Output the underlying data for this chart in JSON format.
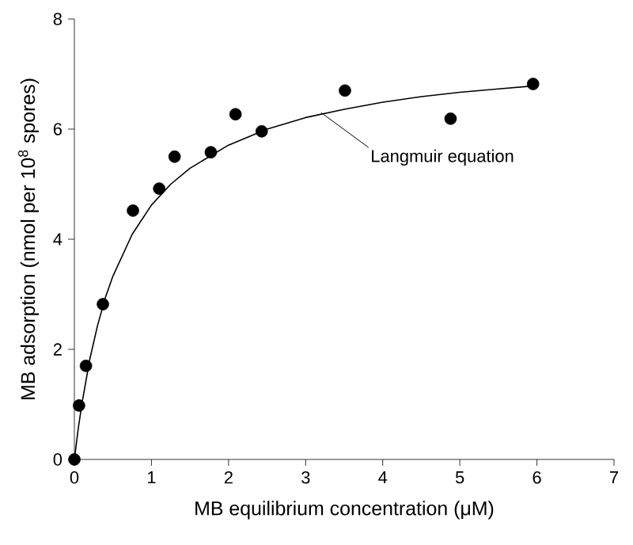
{
  "chart_data": {
    "type": "scatter",
    "xlabel": "MB equilibrium concentration (μM)",
    "ylabel": "MB adsorption (nmol per 10$^{8}$ spores)",
    "xlim": [
      0,
      7
    ],
    "ylim": [
      0,
      8
    ],
    "xticks": [
      0,
      1,
      2,
      3,
      4,
      5,
      6,
      7
    ],
    "yticks": [
      0,
      2,
      4,
      6,
      8
    ],
    "grid": false,
    "series": [
      {
        "marker": "circle",
        "color": "#000000",
        "x": [
          0,
          0.06,
          0.15,
          0.37,
          0.76,
          1.1,
          1.3,
          1.77,
          2.09,
          2.43,
          3.51,
          4.88,
          5.95
        ],
        "values": [
          0,
          0.98,
          1.7,
          2.82,
          4.52,
          4.92,
          5.5,
          5.58,
          6.27,
          5.96,
          6.7,
          6.19,
          6.82
        ]
      },
      {
        "type": "line",
        "marker": "none",
        "line_style": "solid",
        "color": "#000000",
        "x": [
          0,
          0.05,
          0.1,
          0.2,
          0.3,
          0.4,
          0.5,
          0.75,
          1,
          1.25,
          1.5,
          2,
          2.5,
          3,
          3.5,
          4,
          4.5,
          5,
          5.5,
          6
        ],
        "values": [
          0,
          0.56,
          1.03,
          1.82,
          2.43,
          2.93,
          3.33,
          4.09,
          4.62,
          5.0,
          5.29,
          5.71,
          6.0,
          6.21,
          6.36,
          6.49,
          6.59,
          6.67,
          6.73,
          6.79
        ]
      }
    ],
    "annotations": [
      {
        "text": "Langmuir equation",
        "x": 3.2,
        "y": 6.3
      }
    ]
  }
}
